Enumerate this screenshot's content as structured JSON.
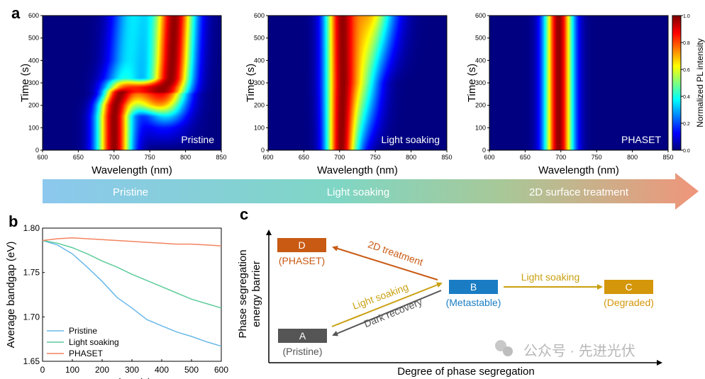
{
  "panel_labels": {
    "a": "a",
    "b": "b",
    "c": "c"
  },
  "chart_data": [
    {
      "type": "heatmap",
      "id": "pristine",
      "annotation": "Pristine",
      "xlabel": "Wavelength (nm)",
      "ylabel": "Time (s)",
      "xlim": [
        600,
        850
      ],
      "ylim": [
        0,
        600
      ],
      "xticks": [
        "600",
        "650",
        "700",
        "750",
        "800",
        "850"
      ],
      "yticks": [
        "0",
        "100",
        "200",
        "300",
        "400",
        "500",
        "600"
      ],
      "colormap": "jet",
      "rows": [
        {
          "t": 0,
          "peaks": [
            [
              700,
              17,
              1
            ]
          ]
        },
        {
          "t": 100,
          "peaks": [
            [
              700,
              17,
              1
            ],
            [
              770,
              25,
              0.15
            ]
          ]
        },
        {
          "t": 150,
          "peaks": [
            [
              700,
              17,
              1
            ],
            [
              772,
              22,
              0.35
            ]
          ]
        },
        {
          "t": 200,
          "peaks": [
            [
              700,
              16,
              1
            ],
            [
              772,
              22,
              0.6
            ],
            [
              740,
              25,
              0.4
            ]
          ]
        },
        {
          "t": 250,
          "peaks": [
            [
              705,
              15,
              1
            ],
            [
              776,
              20,
              0.85
            ],
            [
              740,
              20,
              0.7
            ]
          ]
        },
        {
          "t": 280,
          "peaks": [
            [
              710,
              18,
              0.8
            ],
            [
              780,
              20,
              1
            ],
            [
              745,
              20,
              0.8
            ]
          ]
        },
        {
          "t": 320,
          "peaks": [
            [
              715,
              20,
              0.4
            ],
            [
              780,
              20,
              1
            ]
          ]
        },
        {
          "t": 400,
          "peaks": [
            [
              720,
              20,
              0.35
            ],
            [
              782,
              20,
              1
            ]
          ]
        },
        {
          "t": 600,
          "peaks": [
            [
              725,
              20,
              0.35
            ],
            [
              785,
              20,
              1
            ]
          ]
        }
      ]
    },
    {
      "type": "heatmap",
      "id": "light_soaking",
      "annotation": "Light soaking",
      "xlabel": "Wavelength (nm)",
      "ylabel": "Time (s)",
      "xlim": [
        600,
        850
      ],
      "ylim": [
        0,
        600
      ],
      "xticks": [
        "600",
        "650",
        "700",
        "750",
        "800",
        "850"
      ],
      "yticks": [
        "0",
        "100",
        "200",
        "300",
        "400",
        "500",
        "600"
      ],
      "colormap": "jet",
      "rows": [
        {
          "t": 0,
          "peaks": [
            [
              700,
              14,
              1
            ],
            [
              718,
              16,
              0.3
            ]
          ]
        },
        {
          "t": 300,
          "peaks": [
            [
              700,
              15,
              1
            ],
            [
              728,
              20,
              0.7
            ]
          ]
        },
        {
          "t": 600,
          "peaks": [
            [
              700,
              15,
              1
            ],
            [
              740,
              25,
              0.9
            ]
          ]
        }
      ]
    },
    {
      "type": "heatmap",
      "id": "phaset",
      "annotation": "PHASET",
      "xlabel": "Wavelength (nm)",
      "ylabel": "Time (s)",
      "xlim": [
        600,
        850
      ],
      "ylim": [
        0,
        600
      ],
      "xticks": [
        "600",
        "650",
        "700",
        "750",
        "800",
        "850"
      ],
      "yticks": [
        "0",
        "100",
        "200",
        "300",
        "400",
        "500",
        "600"
      ],
      "colormap": "jet",
      "rows": [
        {
          "t": 0,
          "peaks": [
            [
              697,
              14,
              1
            ]
          ]
        },
        {
          "t": 600,
          "peaks": [
            [
              697,
              14,
              1
            ]
          ]
        }
      ]
    },
    {
      "type": "colorbar",
      "label": "Normalized PL intensity",
      "range": [
        0.0,
        1.0
      ],
      "ticks": [
        "0.0",
        "0.2",
        "0.4",
        "0.6",
        "0.8",
        "1.0"
      ]
    },
    {
      "type": "line",
      "xlabel": "Time (s)",
      "ylabel": "Average bandgap (eV)",
      "xlim": [
        0,
        600
      ],
      "ylim": [
        1.65,
        1.8
      ],
      "xticks": [
        "0",
        "100",
        "200",
        "300",
        "400",
        "500",
        "600"
      ],
      "yticks": [
        "1.65",
        "1.70",
        "1.75",
        "1.80"
      ],
      "legend_position": "bottom-left",
      "x": [
        0,
        50,
        100,
        150,
        200,
        250,
        300,
        350,
        400,
        450,
        500,
        550,
        600
      ],
      "series": [
        {
          "name": "Pristine",
          "color": "#6ab8e8",
          "values": [
            1.786,
            1.781,
            1.771,
            1.756,
            1.74,
            1.722,
            1.71,
            1.697,
            1.69,
            1.683,
            1.678,
            1.672,
            1.667
          ]
        },
        {
          "name": "Light soaking",
          "color": "#5dcc9a",
          "values": [
            1.786,
            1.783,
            1.778,
            1.771,
            1.763,
            1.756,
            1.748,
            1.741,
            1.734,
            1.727,
            1.72,
            1.715,
            1.71
          ]
        },
        {
          "name": "PHASET",
          "color": "#f4845f",
          "values": [
            1.786,
            1.788,
            1.789,
            1.788,
            1.787,
            1.786,
            1.785,
            1.784,
            1.783,
            1.782,
            1.782,
            1.781,
            1.78
          ]
        }
      ]
    }
  ],
  "banner": {
    "labels": [
      "Pristine",
      "Light soaking",
      "2D surface treatment"
    ]
  },
  "diagram": {
    "ylabel_line1": "Phase segregation",
    "ylabel_line2": "energy barrier",
    "xlabel": "Degree of phase segregation",
    "states": [
      {
        "id": "A",
        "caption": "(Pristine)",
        "color": "#555555"
      },
      {
        "id": "B",
        "caption": "(Metastable)",
        "color": "#1a7dc4"
      },
      {
        "id": "C",
        "caption": "(Degraded)",
        "color": "#d4960a"
      },
      {
        "id": "D",
        "caption": "(PHASET)",
        "color": "#c85a14"
      }
    ],
    "arrows": [
      {
        "label": "2D treatment",
        "color": "#c85a14"
      },
      {
        "label": "Light soaking",
        "color": "#c9a010"
      },
      {
        "label": "Dark recovery",
        "color": "#555555"
      },
      {
        "label": "Light soaking",
        "color": "#c9a010"
      }
    ]
  },
  "watermark": "公众号 · 先进光伏"
}
